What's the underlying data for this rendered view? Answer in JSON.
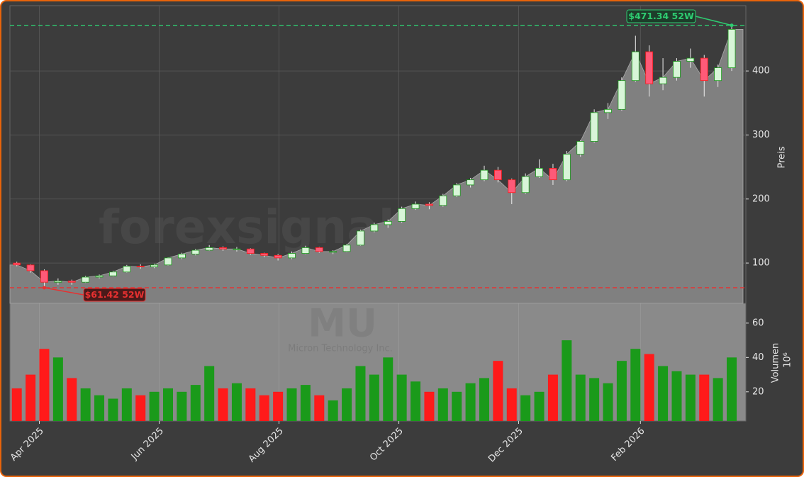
{
  "chart_data": {
    "type": "candlestick",
    "watermark": "forexsignale.trade",
    "symbol": "MU",
    "company": "Micron Technology Inc.",
    "ylabel": "Preis",
    "volume_ylabel": "Volumen",
    "volume_unit": "10⁶",
    "x": [
      0,
      1,
      2,
      3,
      4,
      5,
      6,
      7,
      8,
      9,
      10,
      11,
      12,
      13,
      14,
      15,
      16,
      17,
      18,
      19,
      20,
      21,
      22,
      23,
      24,
      25,
      26,
      27,
      28,
      29,
      30,
      31,
      32,
      33,
      34,
      35,
      36,
      37,
      38,
      39,
      40,
      41,
      42,
      43,
      44,
      45,
      46,
      47,
      48,
      49,
      50,
      51,
      52
    ],
    "open": [
      100,
      97,
      88,
      70,
      72,
      70,
      78,
      80,
      86,
      95,
      94,
      97,
      108,
      114,
      120,
      124,
      122,
      122,
      115,
      112,
      108,
      115,
      124,
      118,
      118,
      128,
      150,
      160,
      165,
      185,
      192,
      190,
      205,
      222,
      230,
      245,
      230,
      210,
      235,
      248,
      230,
      270,
      290,
      335,
      340,
      385,
      430,
      380,
      390,
      415,
      420,
      385,
      405
    ],
    "high": [
      102,
      98,
      90,
      76,
      74,
      80,
      82,
      88,
      97,
      98,
      99,
      109,
      116,
      122,
      128,
      126,
      125,
      123,
      116,
      114,
      118,
      127,
      125,
      120,
      130,
      152,
      163,
      168,
      188,
      196,
      195,
      208,
      225,
      233,
      252,
      250,
      232,
      240,
      262,
      255,
      275,
      292,
      340,
      350,
      390,
      455,
      440,
      420,
      420,
      435,
      425,
      410,
      471.34
    ],
    "low": [
      95,
      85,
      61.42,
      66,
      66,
      69,
      76,
      79,
      85,
      91,
      92,
      96,
      106,
      112,
      119,
      119,
      118,
      113,
      109,
      104,
      106,
      114,
      116,
      114,
      117,
      127,
      148,
      155,
      163,
      183,
      184,
      188,
      203,
      218,
      228,
      226,
      192,
      208,
      233,
      222,
      228,
      266,
      288,
      325,
      338,
      383,
      360,
      370,
      385,
      405,
      360,
      375,
      400
    ],
    "close": [
      97,
      88,
      70,
      72,
      70,
      78,
      80,
      86,
      95,
      94,
      97,
      108,
      114,
      120,
      124,
      122,
      122,
      115,
      112,
      108,
      115,
      124,
      118,
      118,
      128,
      150,
      160,
      165,
      185,
      192,
      190,
      205,
      222,
      230,
      245,
      230,
      210,
      235,
      248,
      230,
      270,
      290,
      335,
      340,
      385,
      430,
      380,
      390,
      415,
      420,
      385,
      405,
      465
    ],
    "volume": [
      22,
      30,
      45,
      40,
      28,
      22,
      18,
      16,
      22,
      18,
      20,
      22,
      20,
      24,
      35,
      22,
      25,
      22,
      18,
      20,
      22,
      24,
      18,
      15,
      22,
      35,
      30,
      40,
      30,
      26,
      20,
      22,
      20,
      25,
      28,
      38,
      22,
      18,
      20,
      30,
      50,
      30,
      28,
      25,
      38,
      45,
      42,
      35,
      32,
      30,
      30,
      28,
      40
    ],
    "up_color": "#1a9a1a",
    "down_color": "#ff1a1a",
    "area_color": "#808080",
    "xlim": [
      -0.5,
      53.03
    ],
    "xticks": [
      {
        "value": 1.64,
        "label": "Apr 2025"
      },
      {
        "value": 10.36,
        "label": "Jun 2025"
      },
      {
        "value": 19.07,
        "label": "Aug 2025"
      },
      {
        "value": 27.79,
        "label": "Oct 2025"
      },
      {
        "value": 36.5,
        "label": "Dec 2025"
      },
      {
        "value": 45.36,
        "label": "Feb 2026"
      }
    ],
    "ylim": [
      37,
      502
    ],
    "yticks": [
      100,
      200,
      300,
      400
    ],
    "volume_ylim": [
      3,
      71.5
    ],
    "volume_yticks": [
      20,
      40,
      60
    ],
    "grid": true,
    "annotations": [
      {
        "text": "$471.34 52W",
        "value": 471.34,
        "x": 52,
        "color": "#2ecc71"
      },
      {
        "text": "$61.42 52W",
        "value": 61.42,
        "x": 2,
        "color": "#e83030"
      }
    ]
  }
}
